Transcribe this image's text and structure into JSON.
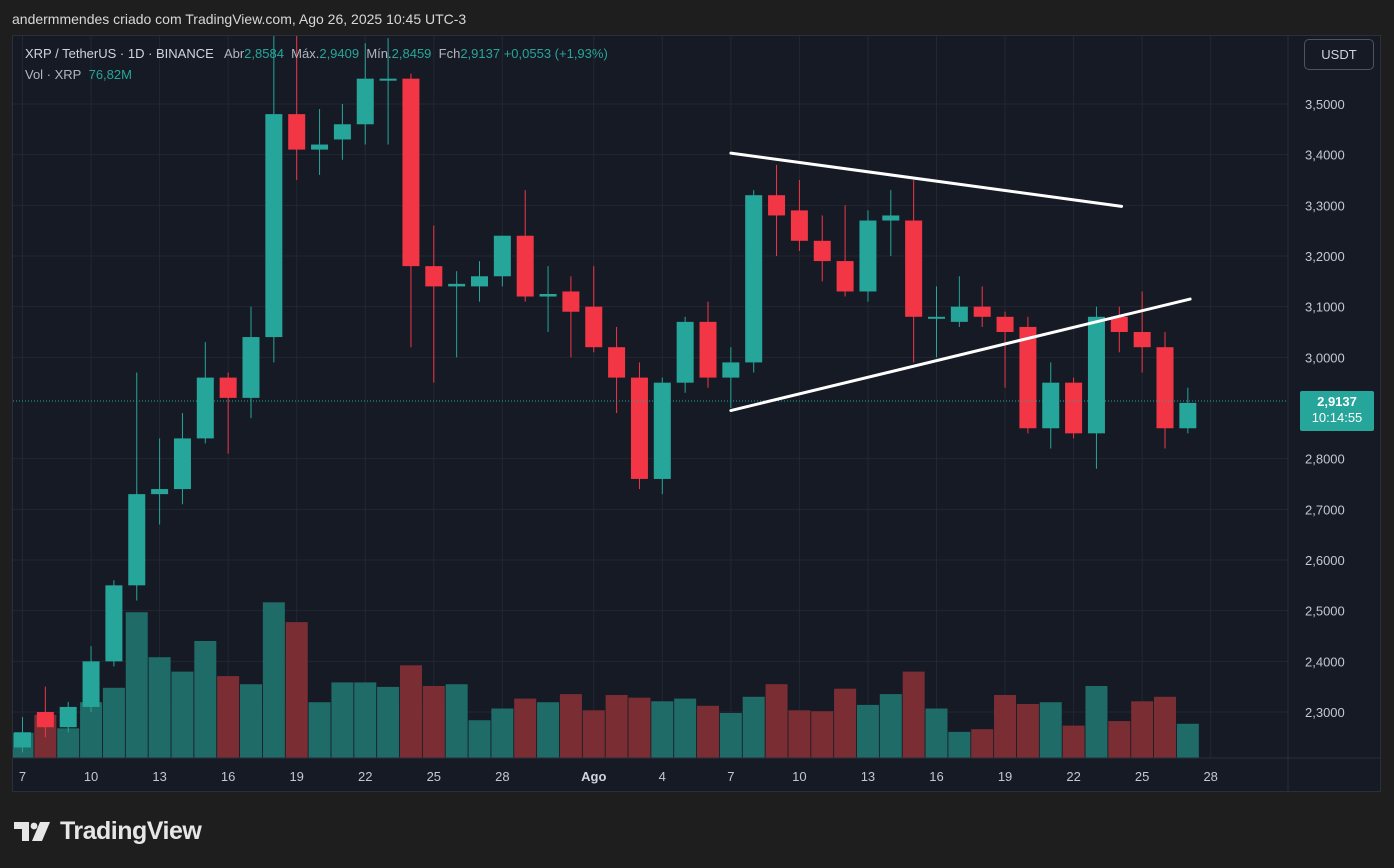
{
  "header": {
    "text": "andermmendes criado com TradingView.com, Ago 26, 2025 10:45 UTC-3"
  },
  "legend": {
    "symbol": "XRP / TetherUS · 1D · BINANCE",
    "open_label": "Abr",
    "open": "2,8584",
    "high_label": "Máx.",
    "high": "2,9409",
    "low_label": "Mín.",
    "low": "2,8459",
    "close_label": "Fch",
    "close": "2,9137",
    "change": "+0,0553 (+1,93%)",
    "volume_label": "Vol · XRP",
    "volume": "76,82M"
  },
  "currency_button": "USDT",
  "price_badge": {
    "price": "2,9137",
    "countdown": "10:14:55"
  },
  "logo_text": "TradingView",
  "colors": {
    "up": "#26a69a",
    "down": "#f23645",
    "up_volume": "#1f6b68",
    "down_volume": "#7a2e33",
    "background": "#161a25",
    "grid": "#232732",
    "trendline": "#ffffff"
  },
  "chart_data": {
    "type": "candlestick",
    "title": "XRP / TetherUS · 1D · BINANCE",
    "y_ticks": [
      "3,5000",
      "3,4000",
      "3,3000",
      "3,2000",
      "3,1000",
      "3,0000",
      "2,8000",
      "2,7000",
      "2,6000",
      "2,5000",
      "2,4000",
      "2,3000"
    ],
    "ylim": [
      2.22,
      3.6
    ],
    "x_ticks": [
      "7",
      "10",
      "13",
      "16",
      "19",
      "22",
      "25",
      "28",
      "Ago",
      "4",
      "7",
      "10",
      "13",
      "16",
      "19",
      "22",
      "25",
      "28"
    ],
    "x_tick_days": [
      0,
      3,
      6,
      9,
      12,
      15,
      18,
      21,
      25,
      28,
      31,
      34,
      37,
      40,
      43,
      46,
      49,
      52
    ],
    "grid": true,
    "candles": [
      {
        "day": 0,
        "o": 2.23,
        "h": 2.29,
        "l": 2.22,
        "c": 2.26
      },
      {
        "day": 1,
        "o": 2.3,
        "h": 2.35,
        "l": 2.25,
        "c": 2.27
      },
      {
        "day": 2,
        "o": 2.27,
        "h": 2.32,
        "l": 2.26,
        "c": 2.31
      },
      {
        "day": 3,
        "o": 2.31,
        "h": 2.43,
        "l": 2.3,
        "c": 2.4
      },
      {
        "day": 4,
        "o": 2.4,
        "h": 2.56,
        "l": 2.39,
        "c": 2.55
      },
      {
        "day": 5,
        "o": 2.55,
        "h": 2.97,
        "l": 2.52,
        "c": 2.73
      },
      {
        "day": 6,
        "o": 2.73,
        "h": 2.84,
        "l": 2.67,
        "c": 2.74
      },
      {
        "day": 7,
        "o": 2.74,
        "h": 2.89,
        "l": 2.71,
        "c": 2.84
      },
      {
        "day": 8,
        "o": 2.84,
        "h": 3.03,
        "l": 2.83,
        "c": 2.96
      },
      {
        "day": 9,
        "o": 2.96,
        "h": 2.97,
        "l": 2.81,
        "c": 2.92
      },
      {
        "day": 10,
        "o": 2.92,
        "h": 3.1,
        "l": 2.88,
        "c": 3.04
      },
      {
        "day": 11,
        "o": 3.04,
        "h": 3.65,
        "l": 2.99,
        "c": 3.48
      },
      {
        "day": 12,
        "o": 3.48,
        "h": 3.66,
        "l": 3.35,
        "c": 3.41
      },
      {
        "day": 13,
        "o": 3.41,
        "h": 3.49,
        "l": 3.36,
        "c": 3.42
      },
      {
        "day": 14,
        "o": 3.43,
        "h": 3.5,
        "l": 3.39,
        "c": 3.46
      },
      {
        "day": 15,
        "o": 3.46,
        "h": 3.62,
        "l": 3.42,
        "c": 3.55
      },
      {
        "day": 16,
        "o": 3.55,
        "h": 3.63,
        "l": 3.42,
        "c": 3.55
      },
      {
        "day": 17,
        "o": 3.55,
        "h": 3.56,
        "l": 3.02,
        "c": 3.18
      },
      {
        "day": 18,
        "o": 3.18,
        "h": 3.26,
        "l": 2.95,
        "c": 3.14
      },
      {
        "day": 19,
        "o": 3.14,
        "h": 3.17,
        "l": 3.0,
        "c": 3.145
      },
      {
        "day": 20,
        "o": 3.14,
        "h": 3.19,
        "l": 3.11,
        "c": 3.16
      },
      {
        "day": 21,
        "o": 3.16,
        "h": 3.24,
        "l": 3.14,
        "c": 3.24
      },
      {
        "day": 22,
        "o": 3.24,
        "h": 3.33,
        "l": 3.11,
        "c": 3.12
      },
      {
        "day": 23,
        "o": 3.12,
        "h": 3.18,
        "l": 3.05,
        "c": 3.125
      },
      {
        "day": 24,
        "o": 3.13,
        "h": 3.16,
        "l": 3.0,
        "c": 3.09
      },
      {
        "day": 25,
        "o": 3.1,
        "h": 3.18,
        "l": 3.01,
        "c": 3.02
      },
      {
        "day": 26,
        "o": 3.02,
        "h": 3.06,
        "l": 2.89,
        "c": 2.96
      },
      {
        "day": 27,
        "o": 2.96,
        "h": 2.99,
        "l": 2.74,
        "c": 2.76
      },
      {
        "day": 28,
        "o": 2.76,
        "h": 2.96,
        "l": 2.73,
        "c": 2.95
      },
      {
        "day": 29,
        "o": 2.95,
        "h": 3.08,
        "l": 2.93,
        "c": 3.07
      },
      {
        "day": 30,
        "o": 3.07,
        "h": 3.11,
        "l": 2.94,
        "c": 2.96
      },
      {
        "day": 31,
        "o": 2.96,
        "h": 3.02,
        "l": 2.9,
        "c": 2.99
      },
      {
        "day": 32,
        "o": 2.99,
        "h": 3.33,
        "l": 2.97,
        "c": 3.32
      },
      {
        "day": 33,
        "o": 3.32,
        "h": 3.38,
        "l": 3.2,
        "c": 3.28
      },
      {
        "day": 34,
        "o": 3.29,
        "h": 3.35,
        "l": 3.21,
        "c": 3.23
      },
      {
        "day": 35,
        "o": 3.23,
        "h": 3.28,
        "l": 3.15,
        "c": 3.19
      },
      {
        "day": 36,
        "o": 3.19,
        "h": 3.3,
        "l": 3.12,
        "c": 3.13
      },
      {
        "day": 37,
        "o": 3.13,
        "h": 3.29,
        "l": 3.11,
        "c": 3.27
      },
      {
        "day": 38,
        "o": 3.27,
        "h": 3.33,
        "l": 3.2,
        "c": 3.28
      },
      {
        "day": 39,
        "o": 3.27,
        "h": 3.35,
        "l": 2.99,
        "c": 3.08
      },
      {
        "day": 40,
        "o": 3.08,
        "h": 3.14,
        "l": 3.0,
        "c": 3.08
      },
      {
        "day": 41,
        "o": 3.07,
        "h": 3.16,
        "l": 3.06,
        "c": 3.1
      },
      {
        "day": 42,
        "o": 3.1,
        "h": 3.14,
        "l": 3.06,
        "c": 3.08
      },
      {
        "day": 43,
        "o": 3.08,
        "h": 3.09,
        "l": 2.94,
        "c": 3.05
      },
      {
        "day": 44,
        "o": 3.06,
        "h": 3.08,
        "l": 2.85,
        "c": 2.86
      },
      {
        "day": 45,
        "o": 2.86,
        "h": 2.99,
        "l": 2.82,
        "c": 2.95
      },
      {
        "day": 46,
        "o": 2.95,
        "h": 2.96,
        "l": 2.84,
        "c": 2.85
      },
      {
        "day": 47,
        "o": 2.85,
        "h": 3.1,
        "l": 2.78,
        "c": 3.08
      },
      {
        "day": 48,
        "o": 3.08,
        "h": 3.1,
        "l": 3.01,
        "c": 3.05
      },
      {
        "day": 49,
        "o": 3.05,
        "h": 3.13,
        "l": 2.97,
        "c": 3.02
      },
      {
        "day": 50,
        "o": 3.02,
        "h": 3.05,
        "l": 2.82,
        "c": 2.86
      },
      {
        "day": 51,
        "o": 2.86,
        "h": 2.94,
        "l": 2.85,
        "c": 2.91
      }
    ],
    "volume_series": {
      "name": "Vol · XRP",
      "values": [
        0.28,
        0.48,
        0.33,
        0.62,
        0.78,
        1.62,
        1.12,
        0.96,
        1.3,
        0.91,
        0.82,
        1.73,
        1.51,
        0.62,
        0.84,
        0.84,
        0.79,
        1.03,
        0.8,
        0.82,
        0.42,
        0.55,
        0.66,
        0.62,
        0.71,
        0.53,
        0.7,
        0.67,
        0.63,
        0.66,
        0.58,
        0.5,
        0.68,
        0.82,
        0.53,
        0.52,
        0.77,
        0.59,
        0.71,
        0.96,
        0.55,
        0.29,
        0.32,
        0.7,
        0.6,
        0.62,
        0.36,
        0.8,
        0.41,
        0.63,
        0.68,
        0.38
      ]
    },
    "trendlines": [
      {
        "from": {
          "day": 31.0,
          "price": 3.403
        },
        "to": {
          "day": 48.1,
          "price": 3.298
        }
      },
      {
        "from": {
          "day": 31.0,
          "price": 2.895
        },
        "to": {
          "day": 51.1,
          "price": 3.115
        }
      }
    ],
    "current_price": 2.9137
  }
}
